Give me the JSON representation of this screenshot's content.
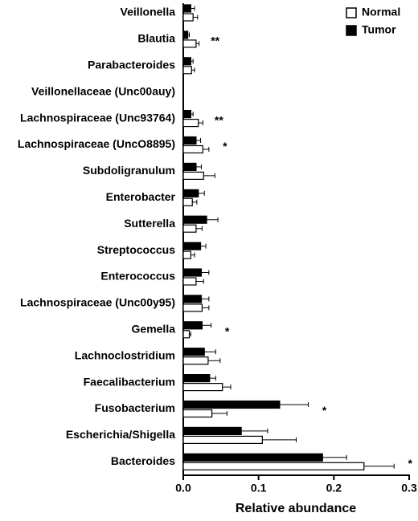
{
  "chart_data": {
    "type": "barh",
    "x_label": "Relative abundance",
    "categories": [
      "Veillonella",
      "Blautia",
      "Parabacteroides",
      "Veillonellaceae (Unc00auy)",
      "Lachnospiraceae (Unc93764)",
      "Lachnospiraceae (UncO8895)",
      "Subdoligranulum",
      "Enterobacter",
      "Sutterella",
      "Streptococcus",
      "Enterococcus",
      "Lachnospiraceae (Unc00y95)",
      "Gemella",
      "Lachnoclostridium",
      "Faecalibacterium",
      "Fusobacterium",
      "Escherichia/Shigella",
      "Bacteroides"
    ],
    "series": [
      {
        "name": "Tumor",
        "color": "#000000",
        "values": [
          0.01,
          0.006,
          0.01,
          0,
          0.01,
          0.017,
          0.017,
          0.02,
          0.031,
          0.023,
          0.024,
          0.024,
          0.025,
          0.028,
          0.035,
          0.128,
          0.077,
          0.185
        ],
        "errors": [
          0.005,
          0.002,
          0.003,
          0,
          0.003,
          0.006,
          0.007,
          0.008,
          0.015,
          0.007,
          0.01,
          0.01,
          0.012,
          0.015,
          0.008,
          0.038,
          0.035,
          0.032
        ]
      },
      {
        "name": "Normal",
        "color": "#ffffff",
        "values": [
          0.013,
          0.017,
          0.011,
          0,
          0.02,
          0.026,
          0.027,
          0.012,
          0.017,
          0.01,
          0.017,
          0.025,
          0.008,
          0.033,
          0.052,
          0.038,
          0.105,
          0.24
        ],
        "errors": [
          0.006,
          0.004,
          0.004,
          0,
          0.006,
          0.008,
          0.015,
          0.006,
          0.008,
          0.005,
          0.01,
          0.009,
          0.002,
          0.016,
          0.011,
          0.02,
          0.045,
          0.04
        ]
      }
    ],
    "annotations": [
      null,
      "**",
      null,
      null,
      "**",
      "*",
      null,
      null,
      null,
      null,
      null,
      null,
      "*",
      null,
      null,
      "*",
      null,
      "*"
    ],
    "xlim": [
      0,
      0.3
    ],
    "xticks": [
      {
        "value": 0,
        "label": "0.0"
      },
      0.1,
      0.2,
      0.3
    ],
    "legend": "upper right"
  }
}
